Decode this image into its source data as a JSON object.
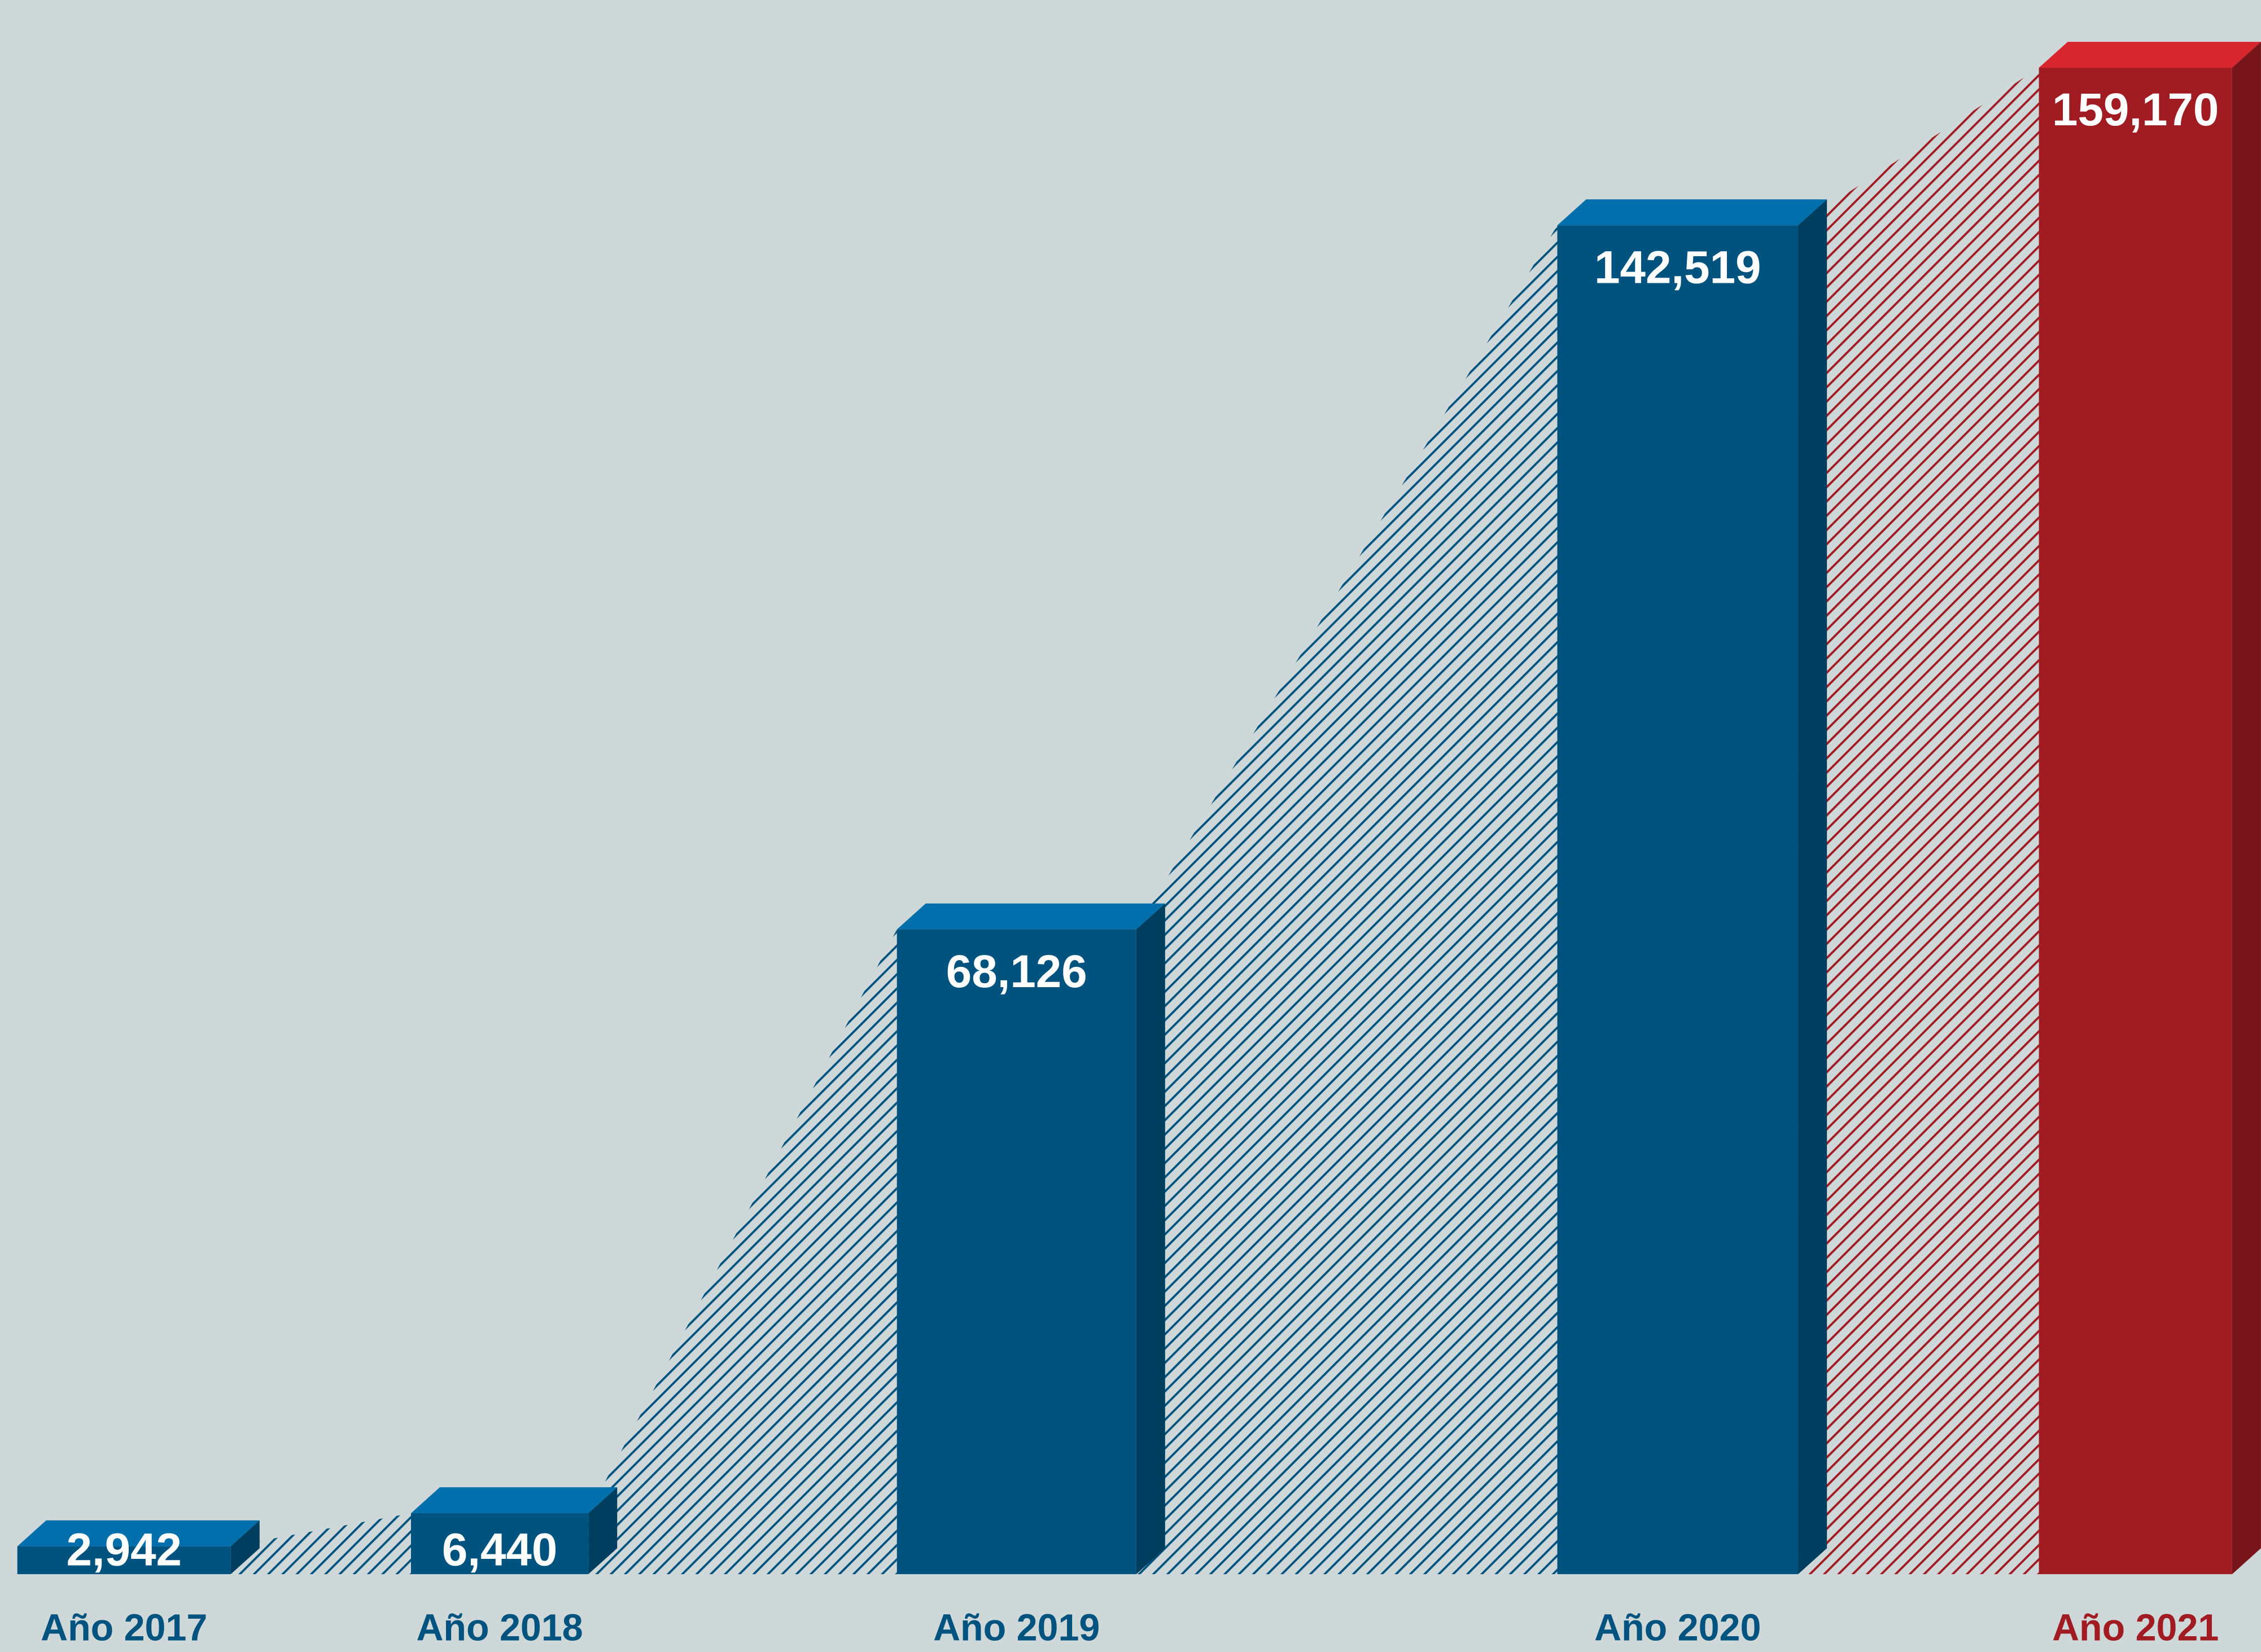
{
  "chart_data": {
    "type": "bar",
    "categories": [
      "Año 2017",
      "Año 2018",
      "Año 2019",
      "Año 2020",
      "Año 2021"
    ],
    "values": [
      2942,
      6440,
      68126,
      142519,
      159170
    ],
    "value_labels": [
      "2,942",
      "6,440",
      "68,126",
      "142,519",
      "159,170"
    ],
    "colors": [
      "#00527f",
      "#00527f",
      "#00527f",
      "#00527f",
      "#a01c22"
    ]
  }
}
